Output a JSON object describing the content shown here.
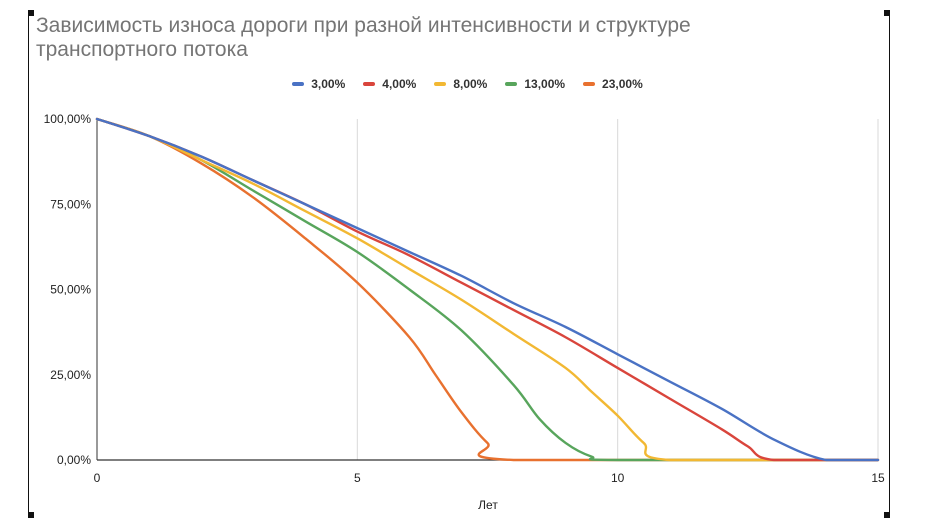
{
  "chart_data": {
    "type": "line",
    "title": "Зависимость износа дороги при разной интенсивности и структуре транспортного потока",
    "xlabel": "Лет",
    "ylabel": "",
    "xlim": [
      0,
      15
    ],
    "ylim": [
      0,
      100
    ],
    "x_ticks": [
      "0",
      "5",
      "10",
      "15"
    ],
    "y_ticks": [
      "0,00%",
      "25,00%",
      "50,00%",
      "75,00%",
      "100,00%"
    ],
    "grid": "vertical",
    "legend_position": "top",
    "series": [
      {
        "name": "3,00%",
        "color": "#4a72c4",
        "points": [
          [
            0,
            100
          ],
          [
            1,
            95
          ],
          [
            2,
            89
          ],
          [
            3,
            82
          ],
          [
            4,
            75
          ],
          [
            5,
            68
          ],
          [
            6,
            61
          ],
          [
            7,
            54
          ],
          [
            8,
            46
          ],
          [
            9,
            39
          ],
          [
            10,
            31
          ],
          [
            11,
            23
          ],
          [
            12,
            15
          ],
          [
            13,
            6
          ],
          [
            14,
            0
          ],
          [
            15,
            0
          ]
        ]
      },
      {
        "name": "4,00%",
        "color": "#d9453c",
        "points": [
          [
            0,
            100
          ],
          [
            1,
            95
          ],
          [
            2,
            89
          ],
          [
            3,
            82
          ],
          [
            4,
            75
          ],
          [
            5,
            67
          ],
          [
            6,
            60
          ],
          [
            7,
            52
          ],
          [
            8,
            44
          ],
          [
            9,
            36
          ],
          [
            10,
            27
          ],
          [
            11,
            18
          ],
          [
            12,
            9
          ],
          [
            12.5,
            4
          ],
          [
            13,
            0
          ],
          [
            15,
            0
          ]
        ]
      },
      {
        "name": "8,00%",
        "color": "#f2b833",
        "points": [
          [
            0,
            100
          ],
          [
            1,
            95
          ],
          [
            2,
            88
          ],
          [
            3,
            81
          ],
          [
            4,
            73
          ],
          [
            5,
            65
          ],
          [
            6,
            56
          ],
          [
            7,
            47
          ],
          [
            8,
            37
          ],
          [
            9,
            27
          ],
          [
            9.5,
            20
          ],
          [
            10,
            13
          ],
          [
            10.5,
            5
          ],
          [
            11,
            0
          ],
          [
            15,
            0
          ]
        ]
      },
      {
        "name": "13,00%",
        "color": "#58a55c",
        "points": [
          [
            0,
            100
          ],
          [
            1,
            95
          ],
          [
            2,
            88
          ],
          [
            3,
            79
          ],
          [
            4,
            70
          ],
          [
            5,
            61
          ],
          [
            6,
            50
          ],
          [
            7,
            38
          ],
          [
            8,
            22
          ],
          [
            8.5,
            12
          ],
          [
            9,
            5
          ],
          [
            9.5,
            1
          ],
          [
            10,
            0
          ],
          [
            15,
            0
          ]
        ]
      },
      {
        "name": "23,00%",
        "color": "#e8712f",
        "points": [
          [
            0,
            100
          ],
          [
            1,
            95
          ],
          [
            2,
            87
          ],
          [
            3,
            77
          ],
          [
            4,
            65
          ],
          [
            5,
            52
          ],
          [
            6,
            36
          ],
          [
            6.5,
            25
          ],
          [
            7,
            14
          ],
          [
            7.5,
            5
          ],
          [
            8,
            0
          ],
          [
            15,
            0
          ]
        ]
      }
    ]
  }
}
